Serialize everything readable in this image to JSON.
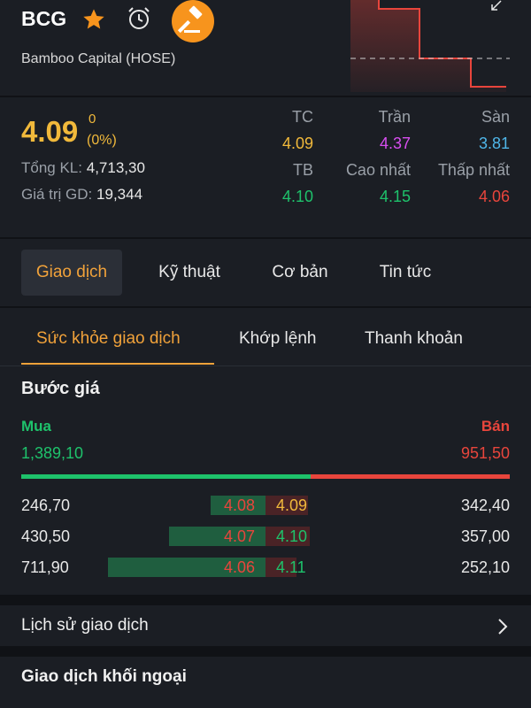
{
  "header": {
    "ticker": "BCG",
    "company": "Bamboo Capital (HOSE)"
  },
  "price": {
    "current": "4.09",
    "change": "0",
    "change_pct": "(0%)",
    "total_volume_label": "Tổng KL:",
    "total_volume": "4,713,30",
    "trade_value_label": "Giá trị GD:",
    "trade_value": "19,344"
  },
  "ref_grid": {
    "tc_label": "TC",
    "tc": "4.09",
    "ceiling_label": "Trần",
    "ceiling": "4.37",
    "floor_label": "Sàn",
    "floor": "3.81",
    "avg_label": "TB",
    "avg": "4.10",
    "high_label": "Cao nhất",
    "high": "4.15",
    "low_label": "Thấp nhất",
    "low": "4.06"
  },
  "main_tabs": [
    {
      "label": "Giao dịch"
    },
    {
      "label": "Kỹ thuật"
    },
    {
      "label": "Cơ bản"
    },
    {
      "label": "Tin tức"
    }
  ],
  "sub_tabs": [
    {
      "label": "Sức khỏe giao dịch"
    },
    {
      "label": "Khớp lệnh"
    },
    {
      "label": "Thanh khoản"
    }
  ],
  "order_book": {
    "title": "Bước giá",
    "buy_label": "Mua",
    "sell_label": "Bán",
    "buy_total": "1,389,10",
    "sell_total": "951,50",
    "buy_ratio": 0.593,
    "rows": [
      {
        "bid_vol": "246,70",
        "bid": "4.08",
        "ask": "4.09",
        "ask_vol": "342,40",
        "bid_frac": 0.35,
        "ask_frac": 0.48
      },
      {
        "bid_vol": "430,50",
        "bid": "4.07",
        "ask": "4.10",
        "ask_vol": "357,00",
        "bid_frac": 0.61,
        "ask_frac": 0.5
      },
      {
        "bid_vol": "711,90",
        "bid": "4.06",
        "ask": "4.11",
        "ask_vol": "252,10",
        "bid_frac": 1.0,
        "ask_frac": 0.35
      }
    ]
  },
  "history_label": "Lịch sử giao dịch",
  "foreign_label": "Giao dịch khối ngoại",
  "colors": {
    "accent": "#f1a23a",
    "up": "#1ec26b",
    "down": "#e8453c",
    "ceiling": "#d84ef0",
    "floor": "#4fb6e8",
    "ref": "#f1b93b"
  }
}
